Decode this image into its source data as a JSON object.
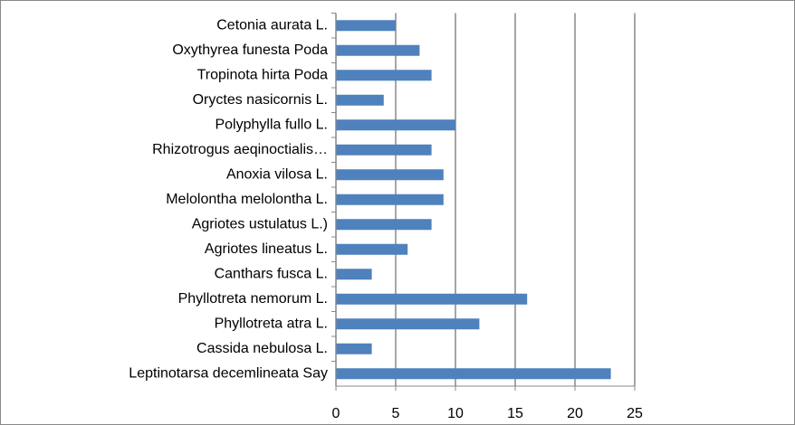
{
  "chart_data": {
    "type": "bar",
    "orientation": "horizontal",
    "categories": [
      "Cetonia aurata L.",
      "Oxythyrea funesta Poda",
      "Tropinota hirta Poda",
      "Oryctes nasicornis L.",
      "Polyphylla fullo L.",
      "Rhizotrogus aeqinoctialis…",
      "Anoxia vilosa L.",
      "Melolontha melolontha L.",
      "Agriotes ustulatus L.)",
      "Agriotes lineatus L.",
      "Canthars fusca L.",
      "Phyllotreta nemorum L.",
      "Phyllotreta atra L.",
      "Cassida nebulosa L.",
      "Leptinotarsa decemlineata Say"
    ],
    "values": [
      5,
      7,
      8,
      4,
      10,
      8,
      9,
      9,
      8,
      6,
      3,
      16,
      12,
      3,
      23
    ],
    "color": "#4f81bd",
    "xlim": [
      0,
      25
    ],
    "xticks": [
      0,
      5,
      10,
      15,
      20,
      25
    ],
    "grid": true
  }
}
